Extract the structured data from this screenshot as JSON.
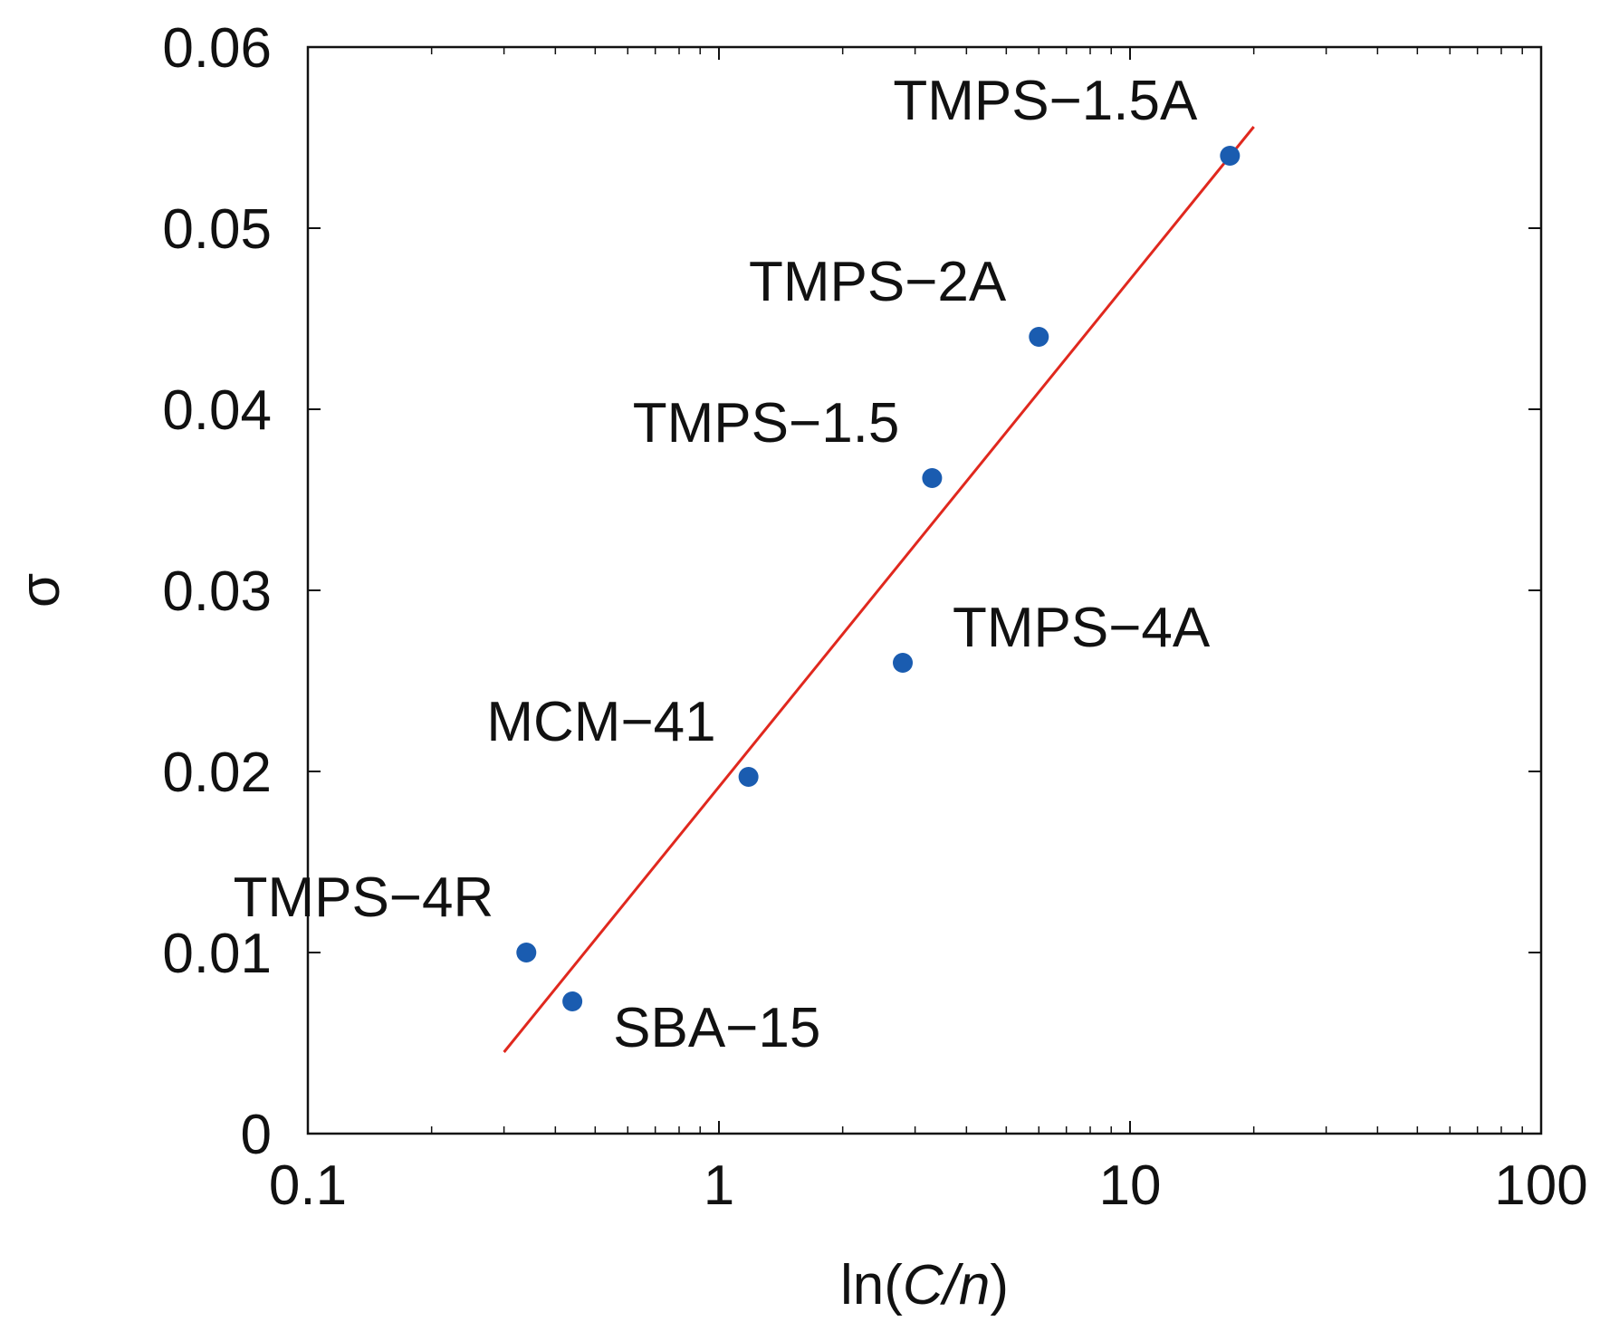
{
  "chart_data": {
    "type": "scatter",
    "title": "",
    "xlabel_parts": [
      "ln(",
      "C/n",
      ")"
    ],
    "ylabel": "σ",
    "xscale": "log",
    "xlim": [
      0.1,
      100
    ],
    "ylim": [
      0,
      0.06
    ],
    "x_ticks": [
      0.1,
      1,
      10,
      100
    ],
    "x_tick_labels": [
      "0.1",
      "1",
      "10",
      "100"
    ],
    "y_ticks": [
      0,
      0.01,
      0.02,
      0.03,
      0.04,
      0.05,
      0.06
    ],
    "y_tick_labels": [
      "0",
      "0.01",
      "0.02",
      "0.03",
      "0.04",
      "0.05",
      "0.06"
    ],
    "grid": false,
    "points": [
      {
        "label": "TMPS−1.5A",
        "x": 17.5,
        "y": 0.054,
        "label_side": "upper-left"
      },
      {
        "label": "TMPS−2A",
        "x": 6.0,
        "y": 0.044,
        "label_side": "upper-left"
      },
      {
        "label": "TMPS−1.5",
        "x": 3.3,
        "y": 0.0362,
        "label_side": "upper-left"
      },
      {
        "label": "TMPS−4A",
        "x": 2.8,
        "y": 0.026,
        "label_side": "upper-right"
      },
      {
        "label": "MCM−41",
        "x": 1.18,
        "y": 0.0197,
        "label_side": "upper-left"
      },
      {
        "label": "TMPS−4R",
        "x": 0.34,
        "y": 0.01,
        "label_side": "upper-left"
      },
      {
        "label": "SBA−15",
        "x": 0.44,
        "y": 0.0073,
        "label_side": "lower-right"
      }
    ],
    "fit_line": {
      "x": [
        0.3,
        20
      ],
      "y": [
        0.0045,
        0.0556
      ],
      "color": "#e0281e"
    },
    "marker_color": "#1a5cb0",
    "axis_color": "#111111"
  }
}
